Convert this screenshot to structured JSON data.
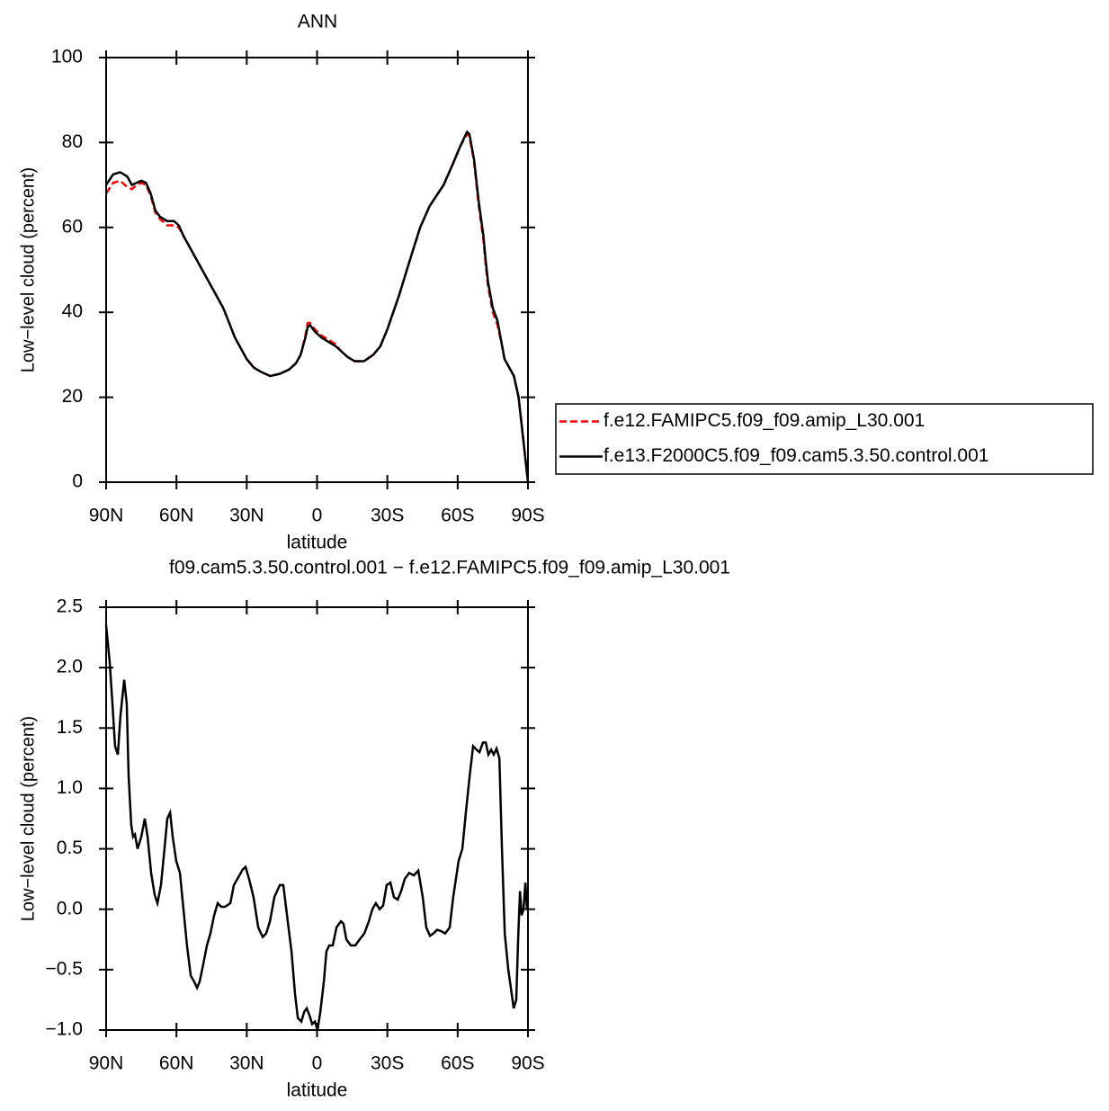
{
  "chart_data": [
    {
      "type": "line",
      "title": "ANN",
      "xlabel": "latitude",
      "ylabel": "Low−level cloud (percent)",
      "legend": "outside-right",
      "x": [
        90,
        87,
        84,
        81,
        79,
        77,
        75,
        73,
        71,
        69,
        67,
        64,
        61,
        59,
        57,
        54,
        50,
        45,
        40,
        35,
        30,
        27,
        24,
        20,
        16,
        12,
        9,
        7,
        5,
        4,
        3,
        1,
        -2,
        -5,
        -8,
        -10,
        -13,
        -16,
        -20,
        -24,
        -27,
        -30,
        -35,
        -40,
        -44,
        -48,
        -54,
        -58,
        -61,
        -64,
        -65,
        -67,
        -69,
        -71,
        -72,
        -73,
        -75,
        -77,
        -79,
        -80,
        -82,
        -84,
        -86,
        -88,
        -90
      ],
      "series": [
        {
          "name": "f.e12.FAMIPC5.f09_f09.amip_L30.001",
          "color": "#ff0000",
          "line_style": "dashed",
          "values": [
            68,
            70.5,
            71,
            69.5,
            69,
            70,
            70.5,
            70,
            67.5,
            63.5,
            62,
            60.5,
            60.5,
            60,
            58,
            55,
            51,
            46,
            41,
            34,
            29,
            27,
            26,
            25,
            25.5,
            26.5,
            28,
            30,
            34.5,
            37.5,
            37.5,
            36,
            34.5,
            33.5,
            32.5,
            31,
            29.5,
            28.5,
            28.5,
            30,
            32,
            36,
            44,
            53,
            60,
            65,
            70,
            75,
            79,
            82,
            81.5,
            75.5,
            65,
            57,
            51,
            46,
            40,
            37,
            32,
            29,
            27,
            25,
            20,
            10,
            0
          ]
        },
        {
          "name": "f.e13.F2000C5.f09_f09.cam5.3.50.control.001",
          "color": "#000000",
          "line_style": "solid",
          "values": [
            70,
            72.5,
            73,
            72,
            70,
            70.5,
            71,
            70.5,
            68,
            64,
            62.5,
            61.5,
            61.5,
            60.5,
            58,
            55,
            51,
            46,
            41,
            34,
            29,
            27,
            26,
            25,
            25.5,
            26.5,
            28,
            30,
            34,
            36.5,
            37,
            35.5,
            34,
            33,
            32,
            31,
            29.5,
            28.5,
            28.5,
            30,
            32,
            36,
            44,
            53,
            60,
            65,
            70,
            75,
            79,
            82.5,
            82,
            76,
            66,
            58,
            52,
            47,
            41,
            38,
            32,
            29,
            27,
            25,
            20,
            10,
            0
          ]
        }
      ],
      "xlim": [
        90,
        -90
      ],
      "xticks": [
        {
          "value": 90,
          "label": "90N"
        },
        {
          "value": 60,
          "label": "60N"
        },
        {
          "value": 30,
          "label": "30N"
        },
        0,
        {
          "value": -30,
          "label": "30S"
        },
        {
          "value": -60,
          "label": "60S"
        },
        {
          "value": -90,
          "label": "90S"
        }
      ],
      "ylim": [
        0,
        100
      ],
      "yticks": [
        0,
        20,
        40,
        60,
        80,
        100
      ]
    },
    {
      "type": "line",
      "title": "f09.cam5.3.50.control.001 − f.e12.FAMIPC5.f09_f09.amip_L30.001",
      "xlabel": "latitude",
      "ylabel": "Low−level cloud (percent)",
      "x": [
        90,
        88.5,
        87.3,
        86.2,
        85,
        83.9,
        82.3,
        81.2,
        80.4,
        79.3,
        78.5,
        77.7,
        76.6,
        75,
        73.5,
        72.3,
        70.8,
        69.3,
        68.1,
        66.6,
        65.1,
        63.9,
        62.7,
        61.6,
        60.1,
        58.5,
        57,
        55.5,
        53.9,
        52.4,
        51.2,
        50.1,
        48.5,
        47,
        45.5,
        43.9,
        42.4,
        40.9,
        39.3,
        37,
        35.5,
        34,
        31.7,
        30.5,
        29,
        27.1,
        25.1,
        23.2,
        21.7,
        20.1,
        18.2,
        15.9,
        14.4,
        12.5,
        10.9,
        9.4,
        8.2,
        6.7,
        5.5,
        4.4,
        3.2,
        2.1,
        0.9,
        -0.2,
        -1.4,
        -2.9,
        -4,
        -5.2,
        -6.7,
        -8.3,
        -10.2,
        -11.3,
        -12.5,
        -14.4,
        -16.3,
        -18.2,
        -20.2,
        -22.1,
        -23.6,
        -25.1,
        -26.7,
        -28.2,
        -29.7,
        -31.3,
        -32.8,
        -34.4,
        -35.9,
        -37.4,
        -39.3,
        -41.3,
        -43.2,
        -45.1,
        -46.6,
        -48.2,
        -49.7,
        -51.2,
        -52.8,
        -54.7,
        -56.6,
        -58.1,
        -60.4,
        -62,
        -63.5,
        -65.1,
        -66.6,
        -68.1,
        -69.3,
        -70.8,
        -72,
        -73.1,
        -74.3,
        -75.4,
        -76.6,
        -77.8,
        -78.9,
        -80.1,
        -81.6,
        -82.7,
        -83.9,
        -85,
        -85.8,
        -86.6,
        -87.3,
        -88.1,
        -88.9,
        -89.6
      ],
      "series": [
        {
          "color": "#000000",
          "line_style": "solid",
          "values": [
            2.35,
            2.05,
            1.7,
            1.35,
            1.28,
            1.6,
            1.9,
            1.7,
            1.1,
            0.7,
            0.6,
            0.62,
            0.5,
            0.6,
            0.75,
            0.6,
            0.3,
            0.12,
            0.05,
            0.2,
            0.5,
            0.75,
            0.8,
            0.6,
            0.4,
            0.3,
            0.0,
            -0.3,
            -0.55,
            -0.6,
            -0.65,
            -0.6,
            -0.45,
            -0.3,
            -0.2,
            -0.05,
            0.05,
            0.02,
            0.02,
            0.05,
            0.2,
            0.25,
            0.33,
            0.35,
            0.25,
            0.1,
            -0.15,
            -0.23,
            -0.2,
            -0.1,
            0.1,
            0.2,
            0.2,
            -0.1,
            -0.35,
            -0.7,
            -0.9,
            -0.93,
            -0.85,
            -0.82,
            -0.88,
            -0.95,
            -0.93,
            -1.0,
            -0.85,
            -0.6,
            -0.35,
            -0.3,
            -0.3,
            -0.15,
            -0.1,
            -0.12,
            -0.25,
            -0.3,
            -0.3,
            -0.25,
            -0.2,
            -0.1,
            0.0,
            0.05,
            0.0,
            0.03,
            0.2,
            0.22,
            0.1,
            0.08,
            0.15,
            0.25,
            0.3,
            0.28,
            0.32,
            0.1,
            -0.15,
            -0.22,
            -0.2,
            -0.17,
            -0.18,
            -0.2,
            -0.15,
            0.1,
            0.4,
            0.5,
            0.8,
            1.1,
            1.35,
            1.32,
            1.3,
            1.38,
            1.38,
            1.28,
            1.32,
            1.28,
            1.33,
            1.25,
            0.5,
            -0.2,
            -0.5,
            -0.65,
            -0.82,
            -0.75,
            -0.25,
            0.15,
            -0.05,
            0.0,
            0.22,
            0.0
          ]
        }
      ],
      "xlim": [
        90,
        -90
      ],
      "xticks": [
        {
          "value": 90,
          "label": "90N"
        },
        {
          "value": 60,
          "label": "60N"
        },
        {
          "value": 30,
          "label": "30N"
        },
        0,
        {
          "value": -30,
          "label": "30S"
        },
        {
          "value": -60,
          "label": "60S"
        },
        {
          "value": -90,
          "label": "90S"
        }
      ],
      "ylim": [
        -1.0,
        2.5
      ],
      "yticks": [
        {
          "value": -1.0,
          "label": "−1.0"
        },
        {
          "value": -0.5,
          "label": "−0.5"
        },
        {
          "value": 0,
          "label": "0.0"
        },
        0.5,
        {
          "value": 1,
          "label": "1.0"
        },
        1.5,
        {
          "value": 2,
          "label": "2.0"
        },
        2.5
      ]
    }
  ]
}
